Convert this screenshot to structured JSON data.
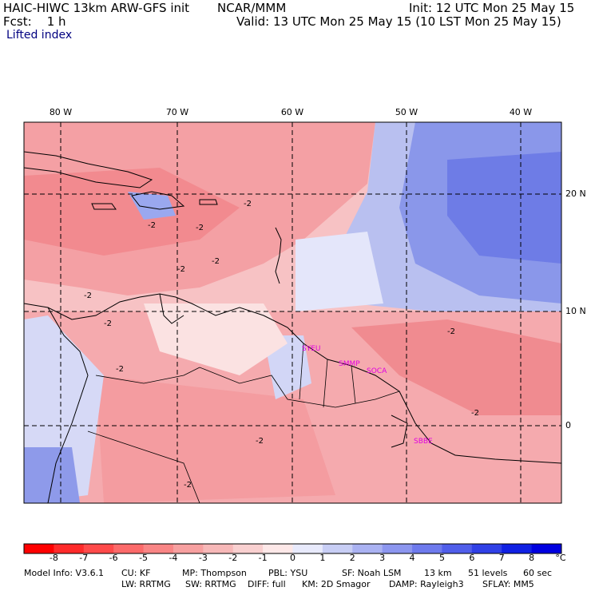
{
  "header": {
    "model": "HAIC-HIWC 13km ARW-GFS init",
    "org": "NCAR/MMM",
    "init": "Init: 12 UTC Mon 25 May 15",
    "fcst": "Fcst:    1 h",
    "valid": "Valid: 13 UTC Mon 25 May 15 (10 LST Mon 25 May 15)",
    "field": "Lifted index"
  },
  "map": {
    "lon_labels": [
      "80 W",
      "70 W",
      "60 W",
      "50 W",
      "40 W"
    ],
    "lat_labels": [
      "20 N",
      "10 N",
      "0"
    ],
    "contour_labels": [
      "-2",
      "-2",
      "-2",
      "-2",
      "-2",
      "-2",
      "-2",
      "-2",
      "-2",
      "-2",
      "-2",
      "-2"
    ],
    "sites": [
      "SYEU",
      "SMMP",
      "SOCA",
      "SBBE"
    ],
    "colors": {
      "negative_strong": "#ff0000",
      "negative_weak": "#f7b4b8",
      "neutral": "#ffffff",
      "positive_weak": "#c8cef5",
      "positive_strong": "#0000e0",
      "site_label": "#e000e0",
      "coast": "#000000"
    }
  },
  "colorbar": {
    "ticks": [
      "-8",
      "-7",
      "-6",
      "-5",
      "-4",
      "-3",
      "-2",
      "-1",
      "0",
      "1",
      "2",
      "3",
      "4",
      "5",
      "6",
      "7",
      "8"
    ],
    "unit": "°C",
    "colors": [
      "#ff0000",
      "#ff2a2a",
      "#ff4a4a",
      "#fc6a6a",
      "#f98585",
      "#f7a0a0",
      "#f7b8b8",
      "#f9d0d0",
      "#fde8e8",
      "#e8eafc",
      "#c8cef5",
      "#aab2f2",
      "#8c96ef",
      "#6e7aed",
      "#505eea",
      "#3040e6",
      "#1020e3",
      "#0000e0"
    ]
  },
  "footer": {
    "line1": [
      "Model Info: V3.6.1",
      "CU: KF",
      "MP: Thompson",
      "PBL: YSU",
      "SF: Noah LSM",
      "13 km",
      "51 levels",
      "60 sec"
    ],
    "line2": [
      "LW: RRTMG",
      "SW: RRTMG",
      "DIFF: full",
      "KM: 2D Smagor",
      "DAMP: Rayleigh3",
      "SFLAY: MM5"
    ]
  }
}
